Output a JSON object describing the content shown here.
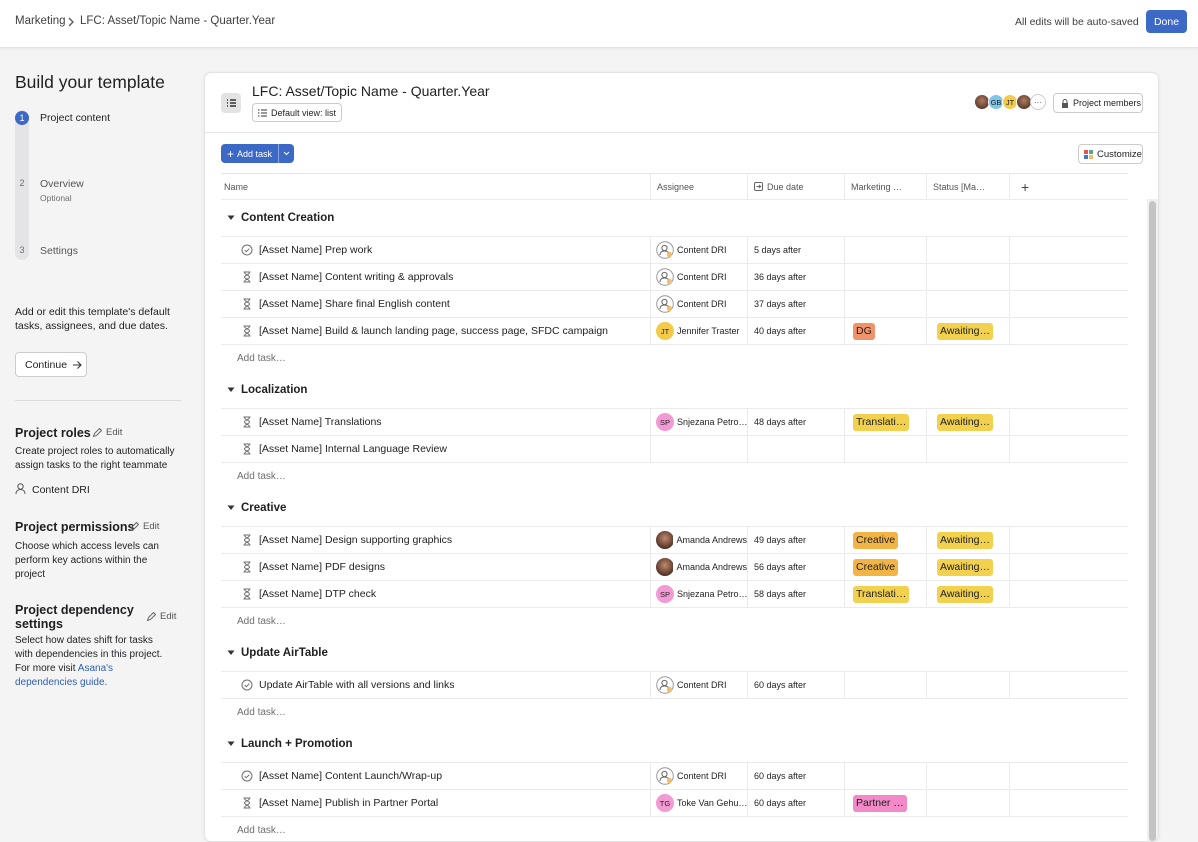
{
  "header": {
    "breadcrumb": [
      "Marketing",
      "LFC: Asset/Topic Name - Quarter.Year"
    ],
    "autosave": "All edits will be auto-saved",
    "done": "Done"
  },
  "sidebar": {
    "title": "Build your template",
    "steps": [
      {
        "number": 1,
        "label": "Project content"
      },
      {
        "number": 2,
        "label": "Overview",
        "sublabel": "Optional"
      },
      {
        "number": 3,
        "label": "Settings"
      }
    ],
    "description": "Add or edit this template's default tasks, assignees, and due dates.",
    "continue": "Continue",
    "roles": {
      "title": "Project roles",
      "edit": "Edit",
      "text": "Create project roles to automatically assign tasks to the right teammate",
      "role": "Content DRI"
    },
    "permissions": {
      "title": "Project permissions",
      "edit": "Edit",
      "text": "Choose which access levels can perform key actions within the project"
    },
    "dependency": {
      "title": "Project dependency settings",
      "edit": "Edit",
      "text": "Select how dates shift for tasks with dependencies in this project. For more visit ",
      "link": "Asana's dependencies guide."
    }
  },
  "project": {
    "title": "LFC: Asset/Topic Name - Quarter.Year",
    "default_view": "Default view: list",
    "members": [
      {
        "initials": "GB",
        "color": "#7fc6e6"
      },
      {
        "initials": "JT",
        "color": "#f3ca4a"
      }
    ],
    "members_button": "Project members",
    "add_task": "Add task",
    "customize": "Customize",
    "columns": [
      "Name",
      "Assignee",
      "Due date",
      "Marketing …",
      "Status [Ma…"
    ],
    "add_row": "Add task…",
    "sections": [
      {
        "name": "Content Creation",
        "tasks": [
          {
            "icon": "check",
            "name": "[Asset Name] Prep work",
            "assignee": {
              "avatar": "role",
              "name": "Content DRI"
            },
            "due": "5 days after"
          },
          {
            "icon": "hourglass",
            "name": "[Asset Name] Content writing & approvals",
            "assignee": {
              "avatar": "role",
              "name": "Content DRI"
            },
            "due": "36 days after"
          },
          {
            "icon": "hourglass",
            "name": "[Asset Name] Share final English content",
            "assignee": {
              "avatar": "role",
              "name": "Content DRI"
            },
            "due": "37 days after"
          },
          {
            "icon": "hourglass",
            "name": "[Asset Name] Build & launch landing page, success page, SFDC campaign",
            "assignee": {
              "avatar": "initials",
              "initials": "JT",
              "color": "#f3ca4a",
              "name": "Jennifer Traster"
            },
            "due": "40 days after",
            "marketing": {
              "text": "DG",
              "color": "#f0926a"
            },
            "status": {
              "text": "Awaiting…",
              "color": "#f2d14f"
            }
          }
        ]
      },
      {
        "name": "Localization",
        "tasks": [
          {
            "icon": "hourglass",
            "name": "[Asset Name] Translations",
            "assignee": {
              "avatar": "initials",
              "initials": "SP",
              "color": "#f29ad3",
              "name": "Snjezana Petro…"
            },
            "due": "48 days after",
            "marketing": {
              "text": "Translati…",
              "color": "#f2d14f"
            },
            "status": {
              "text": "Awaiting…",
              "color": "#f2d14f"
            }
          },
          {
            "icon": "hourglass",
            "name": "[Asset Name] Internal Language Review"
          }
        ]
      },
      {
        "name": "Creative",
        "tasks": [
          {
            "icon": "hourglass",
            "name": "[Asset Name] Design supporting graphics",
            "assignee": {
              "avatar": "photo",
              "name": "Amanda Andrews"
            },
            "due": "49 days after",
            "marketing": {
              "text": "Creative",
              "color": "#f2b545"
            },
            "status": {
              "text": "Awaiting…",
              "color": "#f2d14f"
            }
          },
          {
            "icon": "hourglass",
            "name": "[Asset Name] PDF designs",
            "assignee": {
              "avatar": "photo",
              "name": "Amanda Andrews"
            },
            "due": "56 days after",
            "marketing": {
              "text": "Creative",
              "color": "#f2b545"
            },
            "status": {
              "text": "Awaiting…",
              "color": "#f2d14f"
            }
          },
          {
            "icon": "hourglass",
            "name": "[Asset Name] DTP check",
            "assignee": {
              "avatar": "initials",
              "initials": "SP",
              "color": "#f29ad3",
              "name": "Snjezana Petro…"
            },
            "due": "58 days after",
            "marketing": {
              "text": "Translati…",
              "color": "#f2d14f"
            },
            "status": {
              "text": "Awaiting…",
              "color": "#f2d14f"
            }
          }
        ]
      },
      {
        "name": "Update AirTable",
        "tasks": [
          {
            "icon": "check",
            "name": "Update AirTable with all versions and links",
            "assignee": {
              "avatar": "role",
              "name": "Content DRI"
            },
            "due": "60 days after"
          }
        ]
      },
      {
        "name": "Launch + Promotion",
        "tasks": [
          {
            "icon": "check",
            "name": "[Asset Name] Content Launch/Wrap-up",
            "assignee": {
              "avatar": "role",
              "name": "Content DRI"
            },
            "due": "60 days after"
          },
          {
            "icon": "hourglass",
            "name": "[Asset Name] Publish in Partner Portal",
            "assignee": {
              "avatar": "initials",
              "initials": "TG",
              "color": "#f29ad3",
              "name": "Toke Van Gehu…"
            },
            "due": "60 days after",
            "marketing": {
              "text": "Partner …",
              "color": "#f28ac8"
            }
          }
        ]
      }
    ]
  }
}
